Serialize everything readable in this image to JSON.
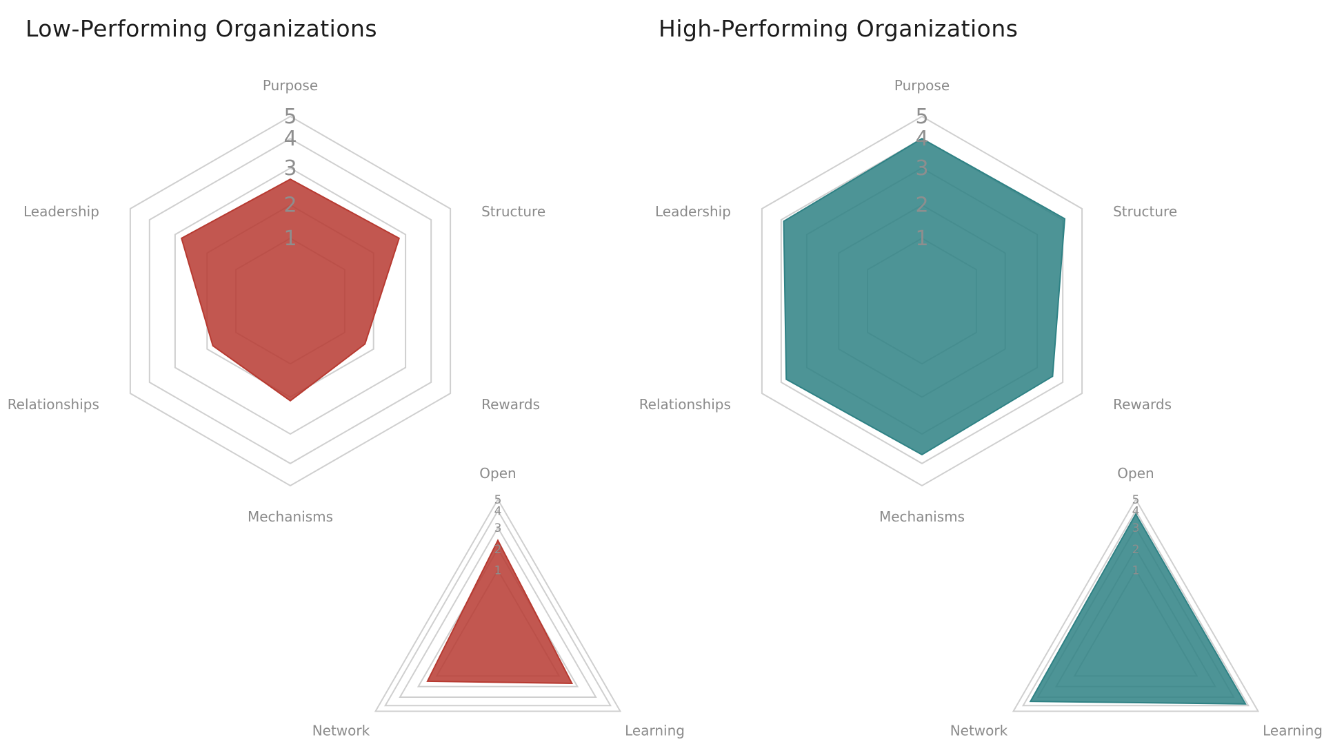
{
  "chart_data": [
    {
      "panel": "left",
      "title": "Low-Performing Organizations",
      "color": "#b73a31",
      "charts": [
        {
          "type": "radar",
          "axes": [
            "Purpose",
            "Structure",
            "Rewards",
            "Mechanisms",
            "Relationships",
            "Leadership"
          ],
          "ticks": [
            1,
            2,
            3,
            4,
            5
          ],
          "range": [
            0,
            5
          ],
          "values": [
            2.7,
            2.8,
            1.7,
            2.1,
            1.8,
            2.8
          ]
        },
        {
          "type": "radar",
          "axes": [
            "Open",
            "Learning",
            "Network"
          ],
          "ticks": [
            1,
            2,
            3,
            4,
            5
          ],
          "range": [
            0,
            5
          ],
          "values": [
            2.4,
            1.7,
            1.5
          ]
        }
      ]
    },
    {
      "panel": "right",
      "title": "High-Performing Organizations",
      "color": "#2e8184",
      "charts": [
        {
          "type": "radar",
          "axes": [
            "Purpose",
            "Structure",
            "Rewards",
            "Mechanisms",
            "Relationships",
            "Leadership"
          ],
          "ticks": [
            1,
            2,
            3,
            4,
            5
          ],
          "range": [
            0,
            5
          ],
          "values": [
            4.0,
            4.1,
            3.6,
            3.7,
            3.8,
            3.9
          ]
        },
        {
          "type": "radar",
          "axes": [
            "Open",
            "Learning",
            "Network"
          ],
          "ticks": [
            1,
            2,
            3,
            4,
            5
          ],
          "range": [
            0,
            5
          ],
          "values": [
            3.8,
            3.8,
            3.5
          ]
        }
      ]
    }
  ]
}
